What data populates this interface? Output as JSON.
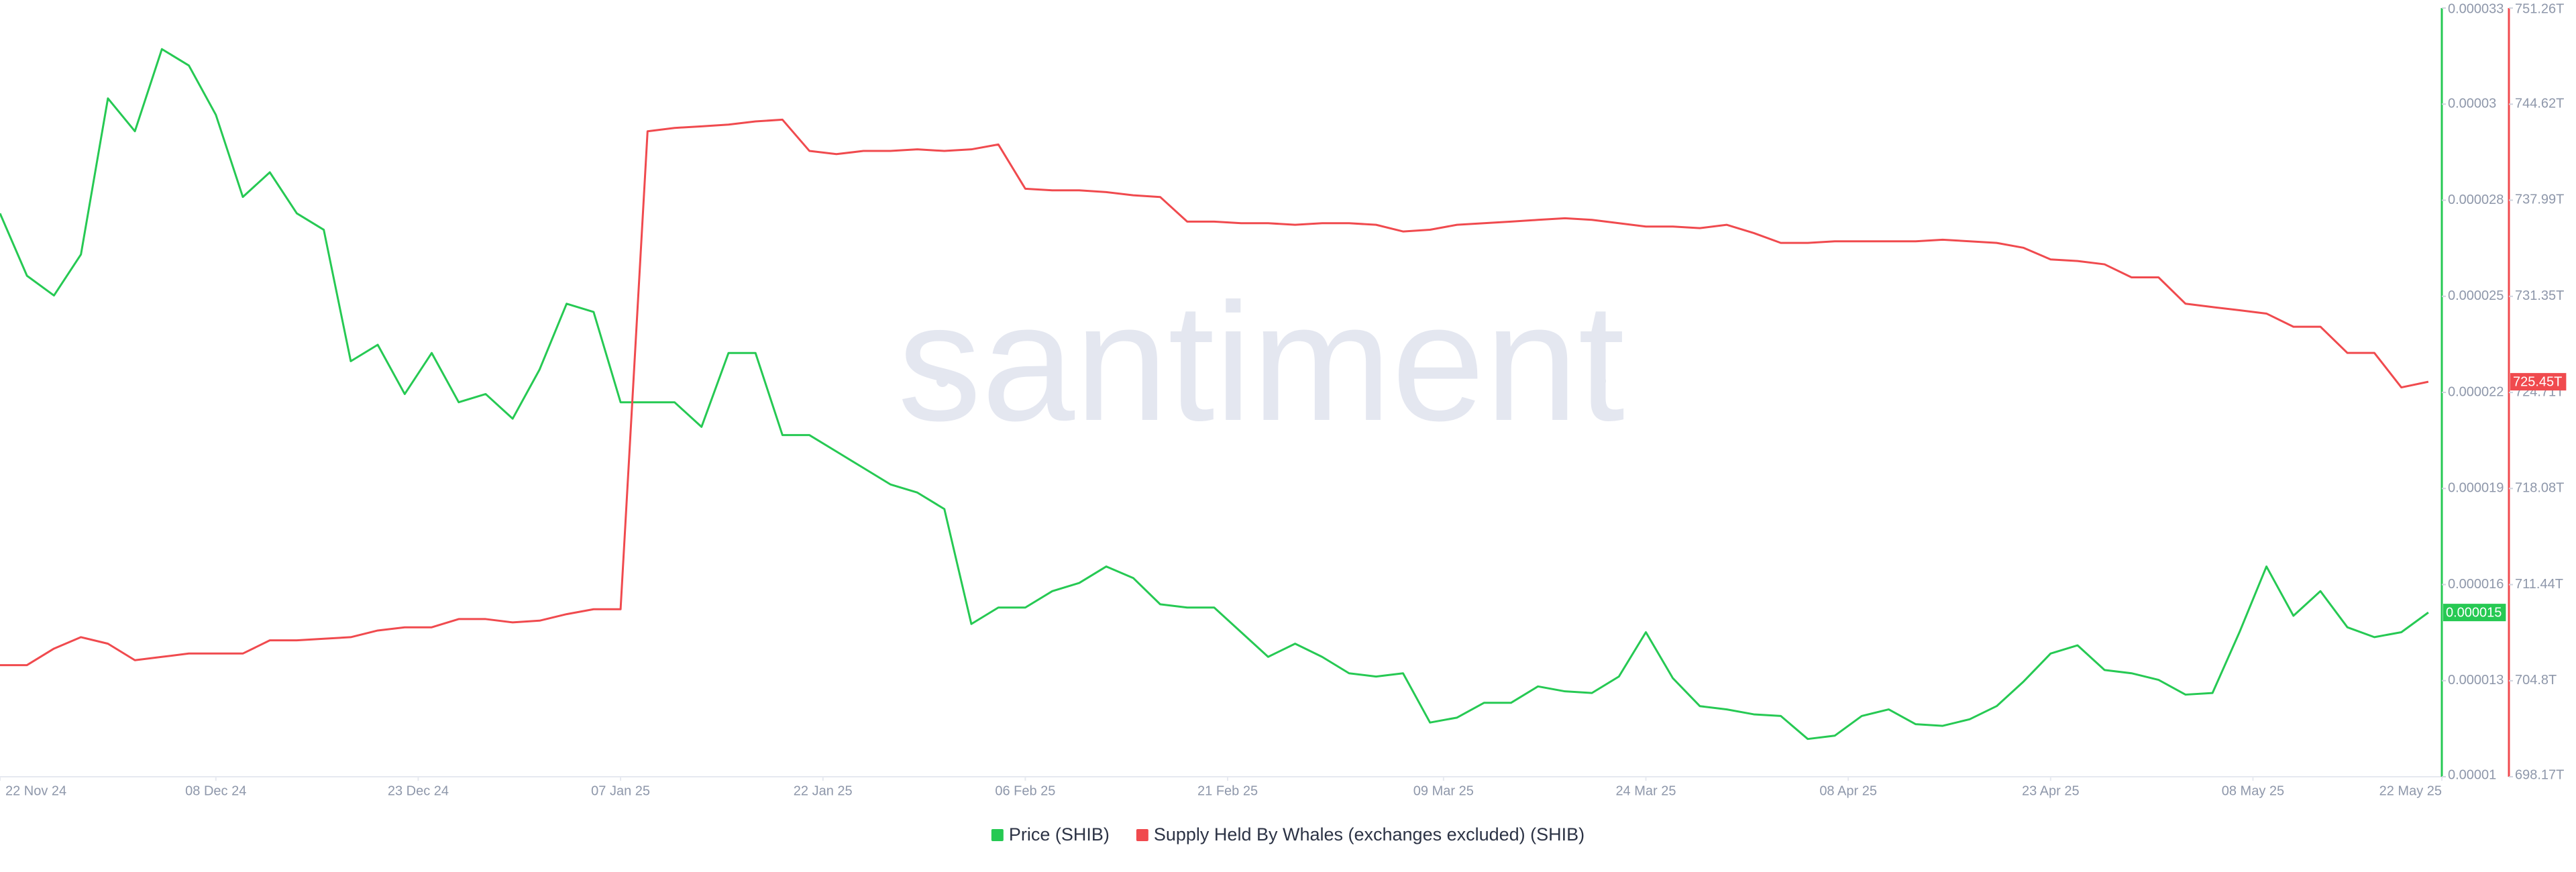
{
  "chart_data": {
    "type": "line",
    "watermark": "santiment",
    "x": [
      "2024-11-22",
      "2024-11-24",
      "2024-11-26",
      "2024-11-28",
      "2024-11-30",
      "2024-12-02",
      "2024-12-04",
      "2024-12-06",
      "2024-12-08",
      "2024-12-10",
      "2024-12-12",
      "2024-12-14",
      "2024-12-16",
      "2024-12-18",
      "2024-12-20",
      "2024-12-22",
      "2024-12-24",
      "2024-12-26",
      "2024-12-28",
      "2024-12-30",
      "2025-01-01",
      "2025-01-03",
      "2025-01-05",
      "2025-01-07",
      "2025-01-09",
      "2025-01-11",
      "2025-01-13",
      "2025-01-15",
      "2025-01-17",
      "2025-01-19",
      "2025-01-21",
      "2025-01-23",
      "2025-01-25",
      "2025-01-27",
      "2025-01-29",
      "2025-01-31",
      "2025-02-02",
      "2025-02-04",
      "2025-02-06",
      "2025-02-08",
      "2025-02-10",
      "2025-02-12",
      "2025-02-14",
      "2025-02-16",
      "2025-02-18",
      "2025-02-20",
      "2025-02-22",
      "2025-02-24",
      "2025-02-26",
      "2025-02-28",
      "2025-03-02",
      "2025-03-04",
      "2025-03-06",
      "2025-03-08",
      "2025-03-10",
      "2025-03-12",
      "2025-03-14",
      "2025-03-16",
      "2025-03-18",
      "2025-03-20",
      "2025-03-22",
      "2025-03-24",
      "2025-03-26",
      "2025-03-28",
      "2025-03-30",
      "2025-04-01",
      "2025-04-03",
      "2025-04-05",
      "2025-04-07",
      "2025-04-09",
      "2025-04-11",
      "2025-04-13",
      "2025-04-15",
      "2025-04-17",
      "2025-04-19",
      "2025-04-21",
      "2025-04-23",
      "2025-04-25",
      "2025-04-27",
      "2025-04-29",
      "2025-05-01",
      "2025-05-03",
      "2025-05-05",
      "2025-05-07",
      "2025-05-09",
      "2025-05-11",
      "2025-05-13",
      "2025-05-15",
      "2025-05-17",
      "2025-05-19",
      "2025-05-21"
    ],
    "xlim": [
      "2024-11-22",
      "2025-05-22"
    ],
    "xticks": [
      {
        "value": "2024-11-22",
        "label": "22 Nov 24"
      },
      {
        "value": "2024-12-08",
        "label": "08 Dec 24"
      },
      {
        "value": "2024-12-23",
        "label": "23 Dec 24"
      },
      {
        "value": "2025-01-07",
        "label": "07 Jan 25"
      },
      {
        "value": "2025-01-22",
        "label": "22 Jan 25"
      },
      {
        "value": "2025-02-06",
        "label": "06 Feb 25"
      },
      {
        "value": "2025-02-21",
        "label": "21 Feb 25"
      },
      {
        "value": "2025-03-09",
        "label": "09 Mar 25"
      },
      {
        "value": "2025-03-24",
        "label": "24 Mar 25"
      },
      {
        "value": "2025-04-08",
        "label": "08 Apr 25"
      },
      {
        "value": "2025-04-23",
        "label": "23 Apr 25"
      },
      {
        "value": "2025-05-08",
        "label": "08 May 25"
      },
      {
        "value": "2025-05-22",
        "label": "22 May 25"
      }
    ],
    "ylim": [
      1e-05,
      3.34e-05
    ],
    "yticks": [
      1e-05,
      {
        "value": 1.2925e-05,
        "label": "0.000013"
      },
      {
        "value": 1.585e-05,
        "label": "0.000016"
      },
      {
        "value": 1.8775e-05,
        "label": "0.000019"
      },
      {
        "value": 2.17e-05,
        "label": "0.000022"
      },
      {
        "value": 2.4625e-05,
        "label": "0.000025"
      },
      {
        "value": 2.755e-05,
        "label": "0.000028"
      },
      {
        "value": 3.0475e-05,
        "label": "0.00003"
      },
      {
        "value": 3.34e-05,
        "label": "0.000033"
      }
    ],
    "y2lim": [
      698.17,
      751.26
    ],
    "y2ticks": [
      {
        "value": 698.17,
        "label": "698.17T"
      },
      {
        "value": 704.8,
        "label": "704.8T"
      },
      {
        "value": 711.44,
        "label": "711.44T"
      },
      {
        "value": 718.08,
        "label": "718.08T"
      },
      {
        "value": 724.71,
        "label": "724.71T"
      },
      {
        "value": 731.35,
        "label": "731.35T"
      },
      {
        "value": 737.99,
        "label": "737.99T"
      },
      {
        "value": 744.62,
        "label": "744.62T"
      },
      {
        "value": 751.26,
        "label": "751.26T"
      }
    ],
    "grid": false,
    "series": [
      {
        "name": "Price (SHIB)",
        "color": "#26c953",
        "axis": "y",
        "current_value_label": "0.000015",
        "values": [
          2.715e-05,
          2.525e-05,
          2.465e-05,
          2.59e-05,
          3.065e-05,
          2.965e-05,
          3.215e-05,
          3.165e-05,
          3.015e-05,
          2.765e-05,
          2.84e-05,
          2.715e-05,
          2.665e-05,
          2.265e-05,
          2.315e-05,
          2.165e-05,
          2.29e-05,
          2.14e-05,
          2.165e-05,
          2.09e-05,
          2.24e-05,
          2.44e-05,
          2.415e-05,
          2.14e-05,
          2.14e-05,
          2.14e-05,
          2.065e-05,
          2.29e-05,
          2.29e-05,
          2.04e-05,
          2.04e-05,
          1.99e-05,
          1.94e-05,
          1.89e-05,
          1.865e-05,
          1.815e-05,
          1.465e-05,
          1.515e-05,
          1.515e-05,
          1.565e-05,
          1.59e-05,
          1.64e-05,
          1.605e-05,
          1.525e-05,
          1.515e-05,
          1.515e-05,
          1.44e-05,
          1.365e-05,
          1.405e-05,
          1.365e-05,
          1.315e-05,
          1.305e-05,
          1.315e-05,
          1.165e-05,
          1.18e-05,
          1.225e-05,
          1.225e-05,
          1.275e-05,
          1.26e-05,
          1.255e-05,
          1.305e-05,
          1.44e-05,
          1.3e-05,
          1.215e-05,
          1.205e-05,
          1.19e-05,
          1.185e-05,
          1.115e-05,
          1.125e-05,
          1.185e-05,
          1.205e-05,
          1.16e-05,
          1.155e-05,
          1.175e-05,
          1.215e-05,
          1.29e-05,
          1.375e-05,
          1.4e-05,
          1.325e-05,
          1.315e-05,
          1.295e-05,
          1.25e-05,
          1.255e-05,
          1.44e-05,
          1.64e-05,
          1.49e-05,
          1.565e-05,
          1.455e-05,
          1.425e-05,
          1.44e-05,
          1.5e-05
        ]
      },
      {
        "name": "Supply Held By Whales (exchanges excluded) (SHIB)",
        "color": "#f04a4e",
        "axis": "y2",
        "current_value_label": "725.45T",
        "values": [
          705.88,
          705.88,
          707.02,
          707.81,
          707.36,
          706.22,
          706.45,
          706.68,
          706.68,
          706.68,
          707.59,
          707.59,
          707.7,
          707.81,
          708.27,
          708.49,
          708.49,
          709.06,
          709.06,
          708.83,
          708.95,
          709.4,
          709.74,
          709.74,
          742.75,
          742.98,
          743.09,
          743.21,
          743.43,
          743.55,
          741.39,
          741.17,
          741.39,
          741.39,
          741.5,
          741.39,
          741.5,
          741.84,
          738.78,
          738.67,
          738.67,
          738.55,
          738.33,
          738.21,
          736.51,
          736.51,
          736.4,
          736.4,
          736.29,
          736.4,
          736.4,
          736.29,
          735.83,
          735.95,
          736.29,
          736.4,
          736.51,
          736.63,
          736.74,
          736.63,
          736.4,
          736.17,
          736.17,
          736.06,
          736.29,
          735.72,
          735.04,
          735.04,
          735.15,
          735.15,
          735.15,
          735.15,
          735.26,
          735.15,
          735.04,
          734.7,
          733.9,
          733.79,
          733.56,
          732.66,
          732.66,
          730.84,
          730.61,
          730.39,
          730.16,
          729.25,
          729.25,
          727.44,
          727.44,
          725.06,
          725.45
        ]
      }
    ]
  }
}
